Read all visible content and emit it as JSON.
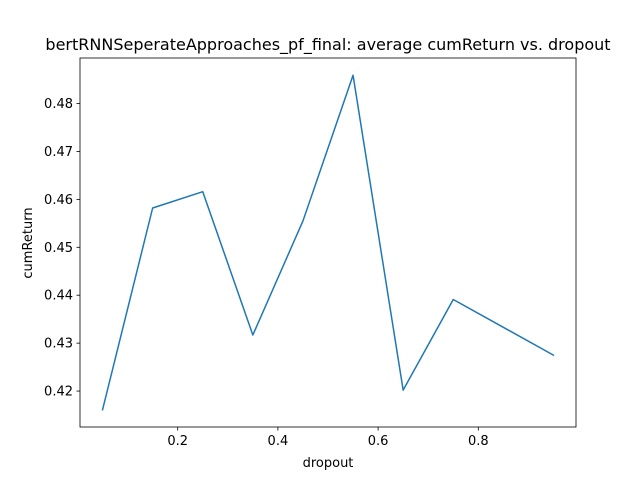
{
  "chart_data": {
    "type": "line",
    "title": "bertRNNSeperateApproaches_pf_final: average cumReturn vs. dropout",
    "xlabel": "dropout",
    "ylabel": "cumReturn",
    "xlim": [
      0.005,
      0.995
    ],
    "ylim": [
      0.4125,
      0.4895
    ],
    "xticks": [
      0.2,
      0.4,
      0.6,
      0.8
    ],
    "xtick_labels": [
      "0.2",
      "0.4",
      "0.6",
      "0.8"
    ],
    "yticks": [
      0.42,
      0.43,
      0.44,
      0.45,
      0.46,
      0.47,
      0.48
    ],
    "ytick_labels": [
      "0.42",
      "0.43",
      "0.44",
      "0.45",
      "0.46",
      "0.47",
      "0.48"
    ],
    "grid": false,
    "line_color": "#1f77b4",
    "series": [
      {
        "x": [
          0.05,
          0.15,
          0.25,
          0.35,
          0.45,
          0.55,
          0.65,
          0.75,
          0.85,
          0.95
        ],
        "y": [
          0.4161,
          0.4582,
          0.4616,
          0.4317,
          0.4555,
          0.4859,
          0.4202,
          0.4391,
          0.4333,
          0.4275
        ]
      }
    ]
  }
}
